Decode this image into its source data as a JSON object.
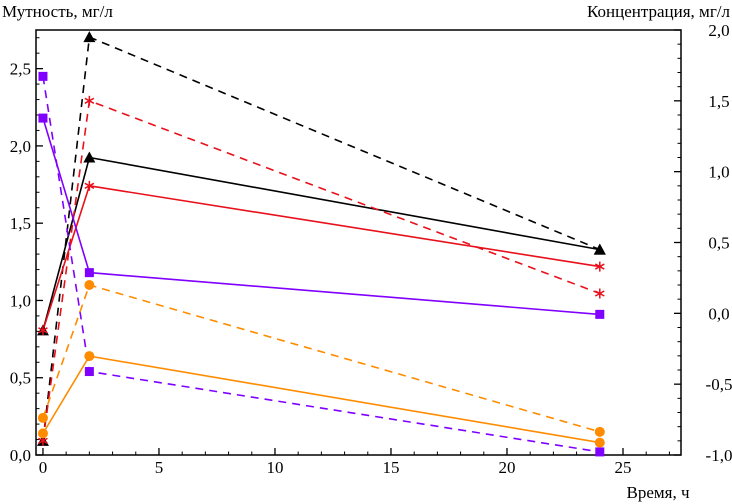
{
  "chart_data": {
    "type": "line",
    "title": "",
    "xlabel": "Время, ч",
    "ylabel_left": "Мутность, мг/л",
    "ylabel_right": "Концентрация, мг/л",
    "xlim": [
      -0.3,
      27.5
    ],
    "ylim_left": [
      0,
      2.75
    ],
    "ylim_right": [
      -1.0,
      2.0
    ],
    "x_ticks": [
      0,
      5,
      10,
      15,
      20,
      25
    ],
    "x_tick_labels": [
      "0",
      "5",
      "10",
      "15",
      "20",
      "25"
    ],
    "y_left_ticks": [
      0,
      0.5,
      1.0,
      1.5,
      2.0,
      2.5
    ],
    "y_left_tick_labels": [
      "0,0",
      "0,5",
      "1,0",
      "1,5",
      "2,0",
      "2,5"
    ],
    "y_right_ticks": [
      -1.0,
      -0.5,
      0.0,
      0.5,
      1.0,
      1.5,
      2.0
    ],
    "y_right_tick_labels": [
      "-1,0",
      "-0,5",
      "0,0",
      "0,5",
      "1,0",
      "1,5",
      "2,0"
    ],
    "grid": false,
    "series": [
      {
        "name": "black-solid",
        "axis": "right",
        "color": "#000000",
        "dash": "solid",
        "marker": "triangle",
        "x": [
          0,
          2,
          24
        ],
        "y": [
          -0.12,
          1.1,
          0.45
        ]
      },
      {
        "name": "black-dashed",
        "axis": "right",
        "color": "#000000",
        "dash": "dashed",
        "marker": "triangle",
        "x": [
          0,
          2,
          24
        ],
        "y": [
          -0.9,
          1.95,
          0.45
        ]
      },
      {
        "name": "red-solid",
        "axis": "right",
        "color": "#e8101a",
        "dash": "solid",
        "marker": "asterisk",
        "x": [
          0,
          2,
          24
        ],
        "y": [
          -0.12,
          0.9,
          0.33
        ]
      },
      {
        "name": "red-dashed",
        "axis": "right",
        "color": "#e8101a",
        "dash": "dashed",
        "marker": "asterisk",
        "x": [
          0,
          2,
          24
        ],
        "y": [
          -0.9,
          1.5,
          0.14
        ]
      },
      {
        "name": "purple-solid",
        "axis": "left",
        "color": "#8000ff",
        "dash": "solid",
        "marker": "square",
        "x": [
          0,
          2,
          24
        ],
        "y": [
          2.18,
          1.18,
          0.91
        ]
      },
      {
        "name": "purple-dashed",
        "axis": "left",
        "color": "#8000ff",
        "dash": "dashed",
        "marker": "square",
        "x": [
          0,
          2,
          24
        ],
        "y": [
          2.45,
          0.54,
          0.02
        ]
      },
      {
        "name": "orange-solid",
        "axis": "left",
        "color": "#ff8c00",
        "dash": "solid",
        "marker": "circle",
        "x": [
          0,
          2,
          24
        ],
        "y": [
          0.14,
          0.64,
          0.08
        ]
      },
      {
        "name": "orange-dashed",
        "axis": "left",
        "color": "#ff8c00",
        "dash": "dashed",
        "marker": "circle",
        "x": [
          0,
          2,
          24
        ],
        "y": [
          0.24,
          1.1,
          0.15
        ]
      }
    ]
  }
}
